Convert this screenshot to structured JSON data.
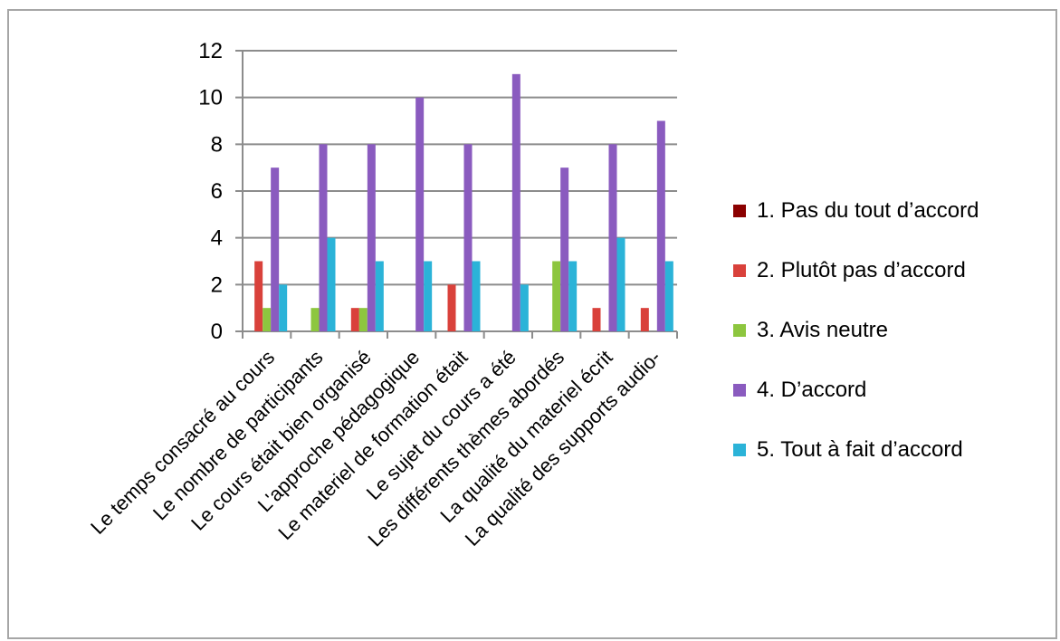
{
  "chart_data": {
    "type": "bar",
    "categories": [
      "Le temps consacré au cours",
      "Le nombre de participants",
      "Le cours était bien organisé",
      "L'approche pédagogique",
      "Le materiel de formation était",
      "Le sujet du cours a été",
      "Les différents thèmes abordés",
      "La qualité du materiel écrit",
      "La qualité des supports audio-"
    ],
    "series": [
      {
        "name": "1. Pas du tout d’accord",
        "color": "#8b0000",
        "values": [
          0,
          0,
          0,
          0,
          0,
          0,
          0,
          0,
          0
        ]
      },
      {
        "name": "2. Plutôt pas d’accord",
        "color": "#d9413b",
        "values": [
          3,
          0,
          1,
          0,
          2,
          0,
          0,
          1,
          1
        ]
      },
      {
        "name": "3. Avis neutre",
        "color": "#8dc63f",
        "values": [
          1,
          1,
          1,
          0,
          0,
          0,
          3,
          0,
          0
        ]
      },
      {
        "name": "4. D’accord",
        "color": "#8a5bbf",
        "values": [
          7,
          8,
          8,
          10,
          8,
          11,
          7,
          8,
          9
        ]
      },
      {
        "name": "5. Tout à fait d’accord",
        "color": "#2bb3d8",
        "values": [
          2,
          4,
          3,
          3,
          3,
          2,
          3,
          4,
          3
        ]
      }
    ],
    "yticks": [
      "0",
      "2",
      "4",
      "6",
      "8",
      "10",
      "12"
    ],
    "ylim": [
      0,
      12
    ],
    "grid": true,
    "legend": "right"
  }
}
